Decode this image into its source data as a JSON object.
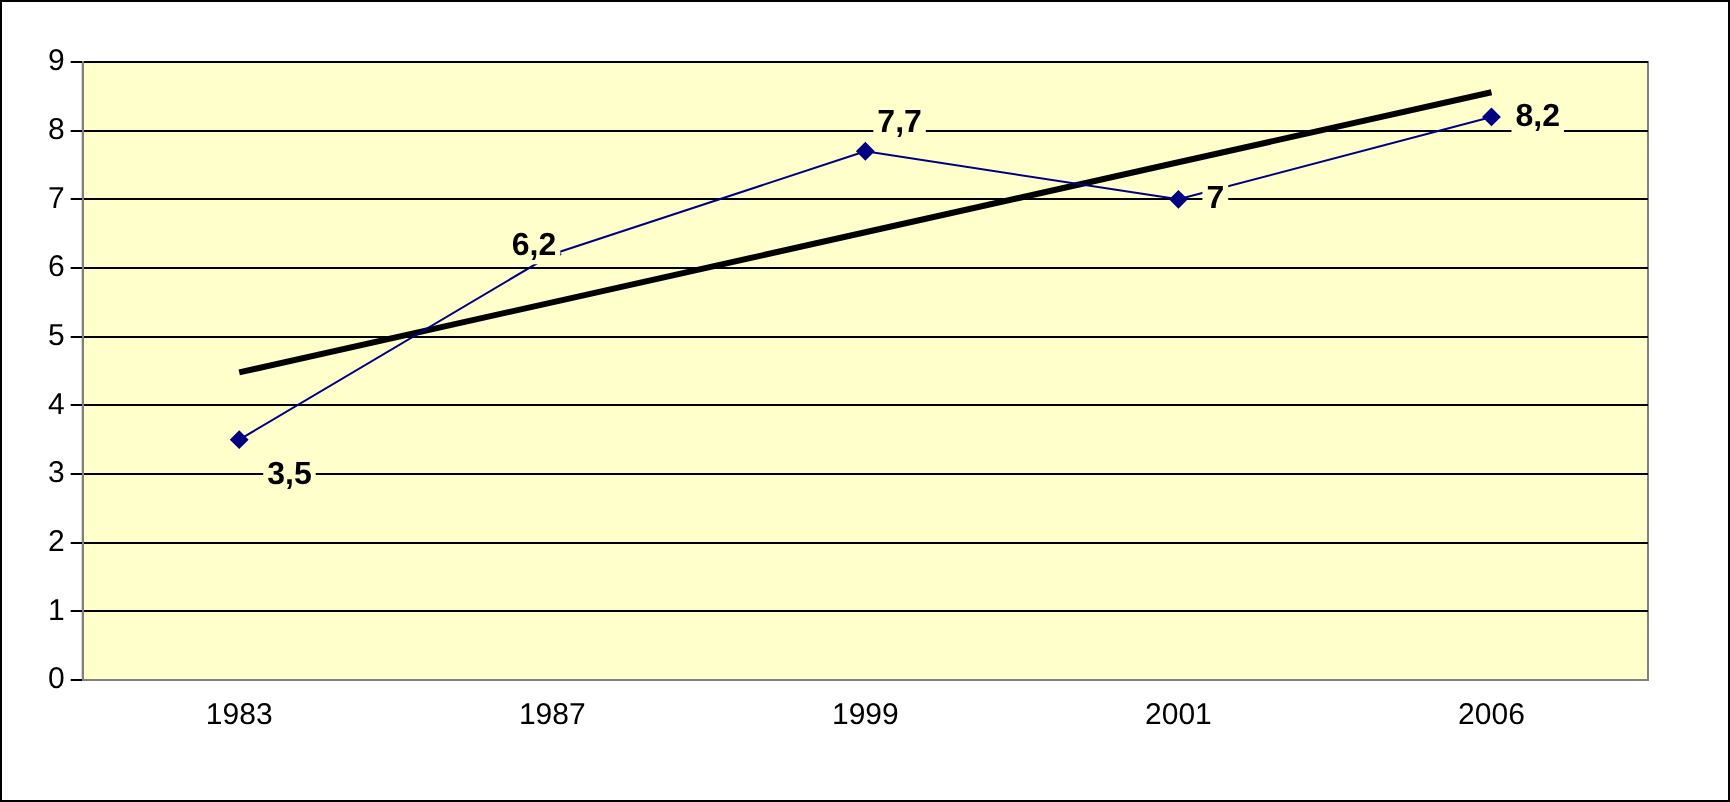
{
  "chart_data": {
    "type": "line",
    "categories": [
      "1983",
      "1987",
      "1999",
      "2001",
      "2006"
    ],
    "series": [
      {
        "color": "#000080",
        "values": [
          3.5,
          6.2,
          7.7,
          7,
          8.2
        ],
        "value_labels": [
          "3,5",
          "6,2",
          "7,7",
          "7",
          "8,2"
        ],
        "marker": "diamond"
      },
      {
        "color": "#000000",
        "values": [
          4.48,
          5.5,
          6.52,
          7.54,
          8.56
        ],
        "marker": "none"
      }
    ],
    "ylim": [
      0,
      9
    ],
    "yticks": [
      0,
      1,
      2,
      3,
      4,
      5,
      6,
      7,
      8,
      9
    ],
    "grid": "y",
    "legend": false
  }
}
